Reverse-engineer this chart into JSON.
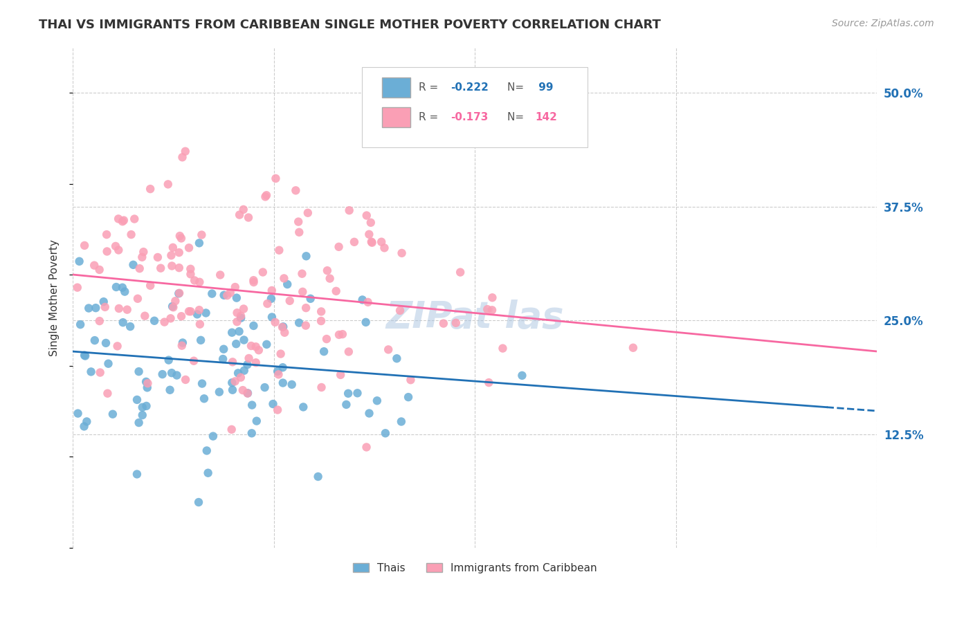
{
  "title": "THAI VS IMMIGRANTS FROM CARIBBEAN SINGLE MOTHER POVERTY CORRELATION CHART",
  "source": "Source: ZipAtlas.com",
  "ylabel": "Single Mother Poverty",
  "right_yticks": [
    "50.0%",
    "37.5%",
    "25.0%",
    "12.5%"
  ],
  "right_ytick_vals": [
    0.5,
    0.375,
    0.25,
    0.125
  ],
  "legend_labels": [
    "Thais",
    "Immigrants from Caribbean"
  ],
  "thai_R": "-0.222",
  "thai_N": "99",
  "carib_R": "-0.173",
  "carib_N": "142",
  "blue_color": "#6baed6",
  "pink_color": "#fa9fb5",
  "blue_line_color": "#2171b5",
  "pink_line_color": "#f768a1",
  "background": "#ffffff",
  "grid_color": "#cccccc",
  "xlim": [
    0.0,
    0.8
  ],
  "ylim": [
    0.0,
    0.55
  ]
}
